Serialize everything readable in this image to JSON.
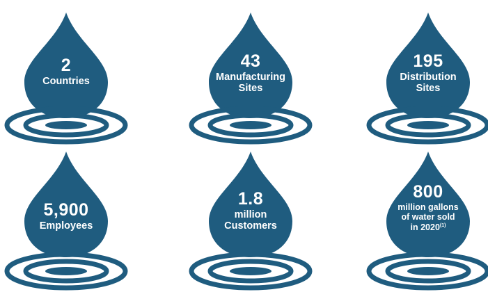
{
  "colors": {
    "drop": "#1f5c7f",
    "white": "#ffffff"
  },
  "stats": [
    {
      "value": "2",
      "lines": [
        "Countries"
      ]
    },
    {
      "value": "43",
      "lines": [
        "Manufacturing",
        "Sites"
      ]
    },
    {
      "value": "195",
      "lines": [
        "Distribution",
        "Sites"
      ]
    },
    {
      "value": "5,900",
      "lines": [
        "Employees"
      ]
    },
    {
      "value": "1.8",
      "lines": [
        "million",
        "Customers"
      ]
    },
    {
      "value": "800",
      "lines": [
        "million gallons",
        "of water sold",
        "in 2020"
      ],
      "footnote": "(1)"
    }
  ]
}
